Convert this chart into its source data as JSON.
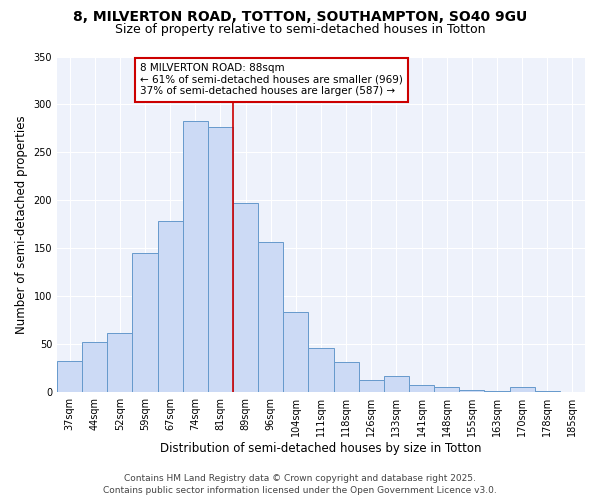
{
  "title_line1": "8, MILVERTON ROAD, TOTTON, SOUTHAMPTON, SO40 9GU",
  "title_line2": "Size of property relative to semi-detached houses in Totton",
  "xlabel": "Distribution of semi-detached houses by size in Totton",
  "ylabel": "Number of semi-detached properties",
  "categories": [
    "37sqm",
    "44sqm",
    "52sqm",
    "59sqm",
    "67sqm",
    "74sqm",
    "81sqm",
    "89sqm",
    "96sqm",
    "104sqm",
    "111sqm",
    "118sqm",
    "126sqm",
    "133sqm",
    "141sqm",
    "148sqm",
    "155sqm",
    "163sqm",
    "170sqm",
    "178sqm",
    "185sqm"
  ],
  "values": [
    33,
    52,
    62,
    145,
    178,
    283,
    277,
    197,
    157,
    84,
    46,
    31,
    13,
    17,
    8,
    5,
    2,
    1,
    5,
    1,
    0
  ],
  "bar_color": "#ccdaf5",
  "bar_edge_color": "#6699cc",
  "vline_x_index": 7,
  "vline_color": "#cc0000",
  "annotation_title": "8 MILVERTON ROAD: 88sqm",
  "annotation_line2": "← 61% of semi-detached houses are smaller (969)",
  "annotation_line3": "37% of semi-detached houses are larger (587) →",
  "annotation_box_color": "#ffffff",
  "annotation_box_edge": "#cc0000",
  "ylim": [
    0,
    350
  ],
  "yticks": [
    0,
    50,
    100,
    150,
    200,
    250,
    300,
    350
  ],
  "background_color": "#ffffff",
  "plot_bg_color": "#eef2fb",
  "footer_line1": "Contains HM Land Registry data © Crown copyright and database right 2025.",
  "footer_line2": "Contains public sector information licensed under the Open Government Licence v3.0.",
  "title_fontsize": 10,
  "subtitle_fontsize": 9,
  "axis_label_fontsize": 8.5,
  "tick_fontsize": 7,
  "annotation_fontsize": 7.5,
  "footer_fontsize": 6.5
}
